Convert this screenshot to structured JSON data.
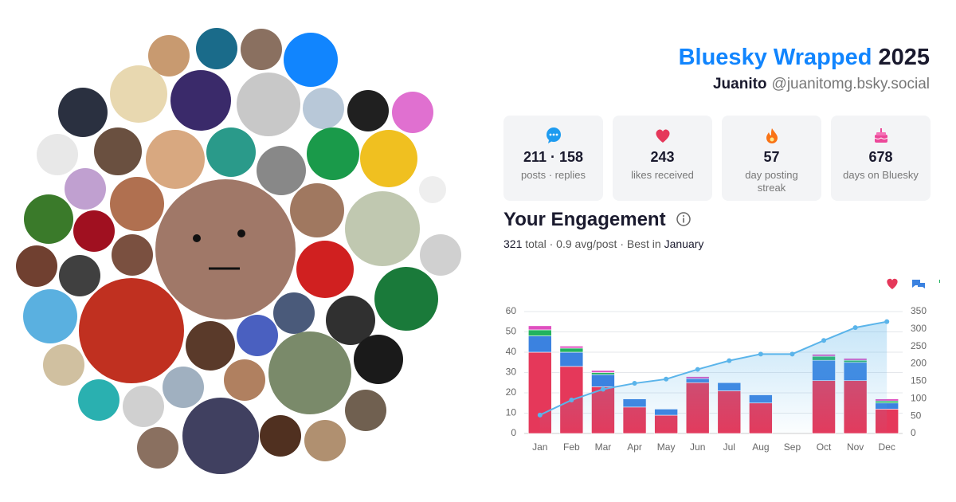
{
  "header": {
    "title": "Bluesky Wrapped",
    "year": "2025",
    "name": "Juanito",
    "handle": "@juanitomg.bsky.social"
  },
  "stats": [
    {
      "value": "211 · 158",
      "label": "posts · replies"
    },
    {
      "value": "243",
      "label": "likes received"
    },
    {
      "value": "57",
      "label": "day posting streak"
    },
    {
      "value": "678",
      "label": "days on Bluesky"
    }
  ],
  "engagement": {
    "title": "Your Engagement",
    "total": "321",
    "total_label": "total",
    "separator": "·",
    "average": "0.9 avg/post",
    "best_prefix": "Best in",
    "best_month": "January"
  },
  "chart_data": {
    "type": "bar",
    "stacked": true,
    "categories": [
      "Jan",
      "Feb",
      "Mar",
      "Apr",
      "May",
      "Jun",
      "Jul",
      "Aug",
      "Sep",
      "Oct",
      "Nov",
      "Dec"
    ],
    "series": [
      {
        "color": "#e5385a",
        "values": [
          40,
          33,
          23,
          13,
          9,
          25,
          21,
          15,
          0,
          26,
          26,
          12
        ]
      },
      {
        "color": "#3b82e0",
        "values": [
          8,
          7,
          6,
          4,
          3,
          2,
          4,
          4,
          0,
          10,
          9,
          3
        ]
      },
      {
        "color": "#22b35e",
        "values": [
          3,
          2,
          1,
          0,
          0,
          0,
          0,
          0,
          0,
          2,
          1,
          1
        ]
      },
      {
        "color": "#e04fc0",
        "values": [
          2,
          1,
          1,
          0,
          0,
          1,
          0,
          0,
          0,
          1,
          1,
          1
        ]
      },
      {
        "type": "line",
        "axis": "y2",
        "area": true,
        "color": "#5ab4ea",
        "values": [
          53,
          96,
          127,
          144,
          156,
          184,
          209,
          228,
          228,
          267,
          304,
          321
        ]
      }
    ],
    "ylim": [
      0,
      60
    ],
    "yticks": [
      0,
      10,
      20,
      30,
      40,
      50,
      60
    ],
    "y2lim": [
      0,
      350
    ],
    "y2ticks": [
      0,
      50,
      100,
      150,
      200,
      250,
      300,
      350
    ],
    "grid": true
  }
}
